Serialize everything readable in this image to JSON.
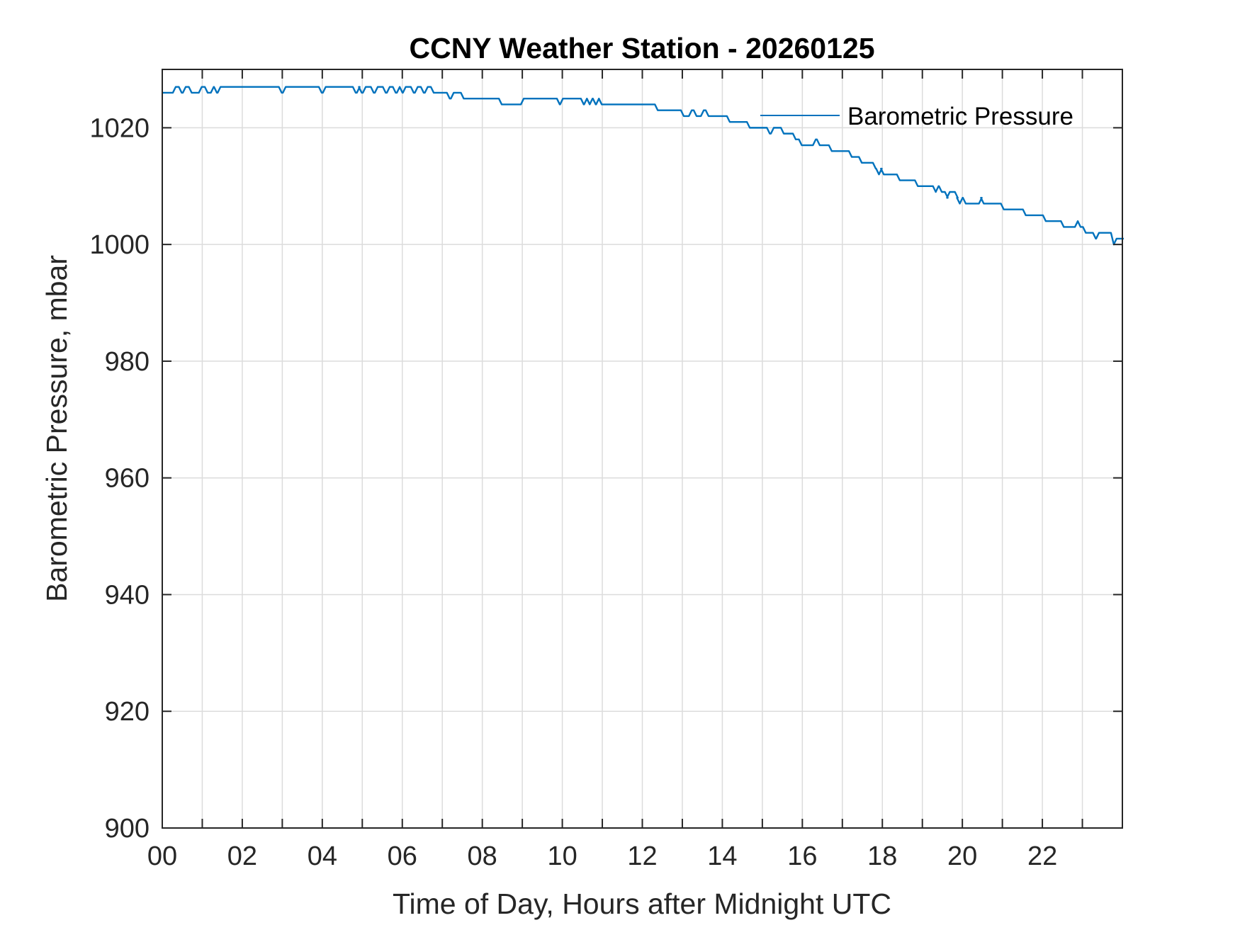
{
  "chart_data": {
    "type": "line",
    "title": "CCNY Weather Station - 20260125",
    "xlabel": "Time of Day, Hours after Midnight UTC",
    "ylabel": "Barometric Pressure, mbar",
    "xlim": [
      0,
      24
    ],
    "ylim": [
      900,
      1030
    ],
    "xticks": [
      0,
      2,
      4,
      6,
      8,
      10,
      12,
      14,
      16,
      18,
      20,
      22
    ],
    "xtick_labels": [
      "00",
      "02",
      "04",
      "06",
      "08",
      "10",
      "12",
      "14",
      "16",
      "18",
      "20",
      "22"
    ],
    "yticks": [
      900,
      920,
      940,
      960,
      980,
      1000,
      1020
    ],
    "ytick_labels": [
      "900",
      "920",
      "940",
      "960",
      "980",
      "1000",
      "1020"
    ],
    "x_minor_gridlines_every_hours": 1,
    "grid": true,
    "legend": {
      "entries": [
        "Barometric Pressure"
      ],
      "placement": "top-right",
      "box": false
    },
    "series": [
      {
        "name": "Barometric Pressure",
        "color": "#0072BD",
        "step": true,
        "x": [
          0.0,
          0.3,
          0.45,
          0.55,
          0.7,
          0.95,
          1.1,
          1.25,
          1.33,
          1.42,
          1.5,
          2.95,
          3.05,
          3.95,
          4.05,
          4.8,
          4.9,
          4.95,
          5.05,
          5.25,
          5.35,
          5.55,
          5.65,
          5.8,
          5.9,
          5.97,
          6.05,
          6.25,
          6.35,
          6.5,
          6.6,
          6.75,
          7.15,
          7.25,
          7.5,
          8.45,
          9.0,
          9.9,
          9.98,
          10.5,
          10.58,
          10.65,
          10.72,
          10.8,
          10.88,
          10.95,
          12.35,
          13.0,
          13.2,
          13.32,
          13.5,
          13.62,
          14.15,
          14.65,
          15.15,
          15.25,
          15.5,
          15.8,
          15.95,
          16.3,
          16.4,
          16.7,
          17.2,
          17.45,
          17.8,
          17.88,
          17.95,
          18.0,
          18.4,
          18.85,
          19.3,
          19.37,
          19.45,
          19.6,
          19.65,
          19.85,
          19.9,
          19.97,
          20.05,
          20.45,
          20.5,
          21.0,
          21.55,
          22.05,
          22.5,
          22.85,
          22.92,
          23.05,
          23.3,
          23.38,
          23.75,
          23.82,
          24.0
        ],
        "y": [
          1026,
          1027,
          1026,
          1027,
          1026,
          1027,
          1026,
          1027,
          1026,
          1027,
          1027,
          1026,
          1027,
          1026,
          1027,
          1026,
          1027,
          1026,
          1027,
          1026,
          1027,
          1026,
          1027,
          1026,
          1027,
          1026,
          1027,
          1026,
          1027,
          1026,
          1027,
          1026,
          1025,
          1026,
          1025,
          1024,
          1025,
          1024,
          1025,
          1024,
          1025,
          1024,
          1025,
          1024,
          1025,
          1024,
          1023,
          1022,
          1023,
          1022,
          1023,
          1022,
          1021,
          1020,
          1019,
          1020,
          1019,
          1018,
          1017,
          1018,
          1017,
          1016,
          1015,
          1014,
          1013,
          1012,
          1013,
          1012,
          1011,
          1010,
          1009,
          1010,
          1009,
          1008,
          1009,
          1008,
          1007,
          1008,
          1007,
          1008,
          1007,
          1006,
          1005,
          1004,
          1003,
          1004,
          1003,
          1002,
          1001,
          1002,
          1000,
          1001,
          1001
        ]
      }
    ]
  }
}
